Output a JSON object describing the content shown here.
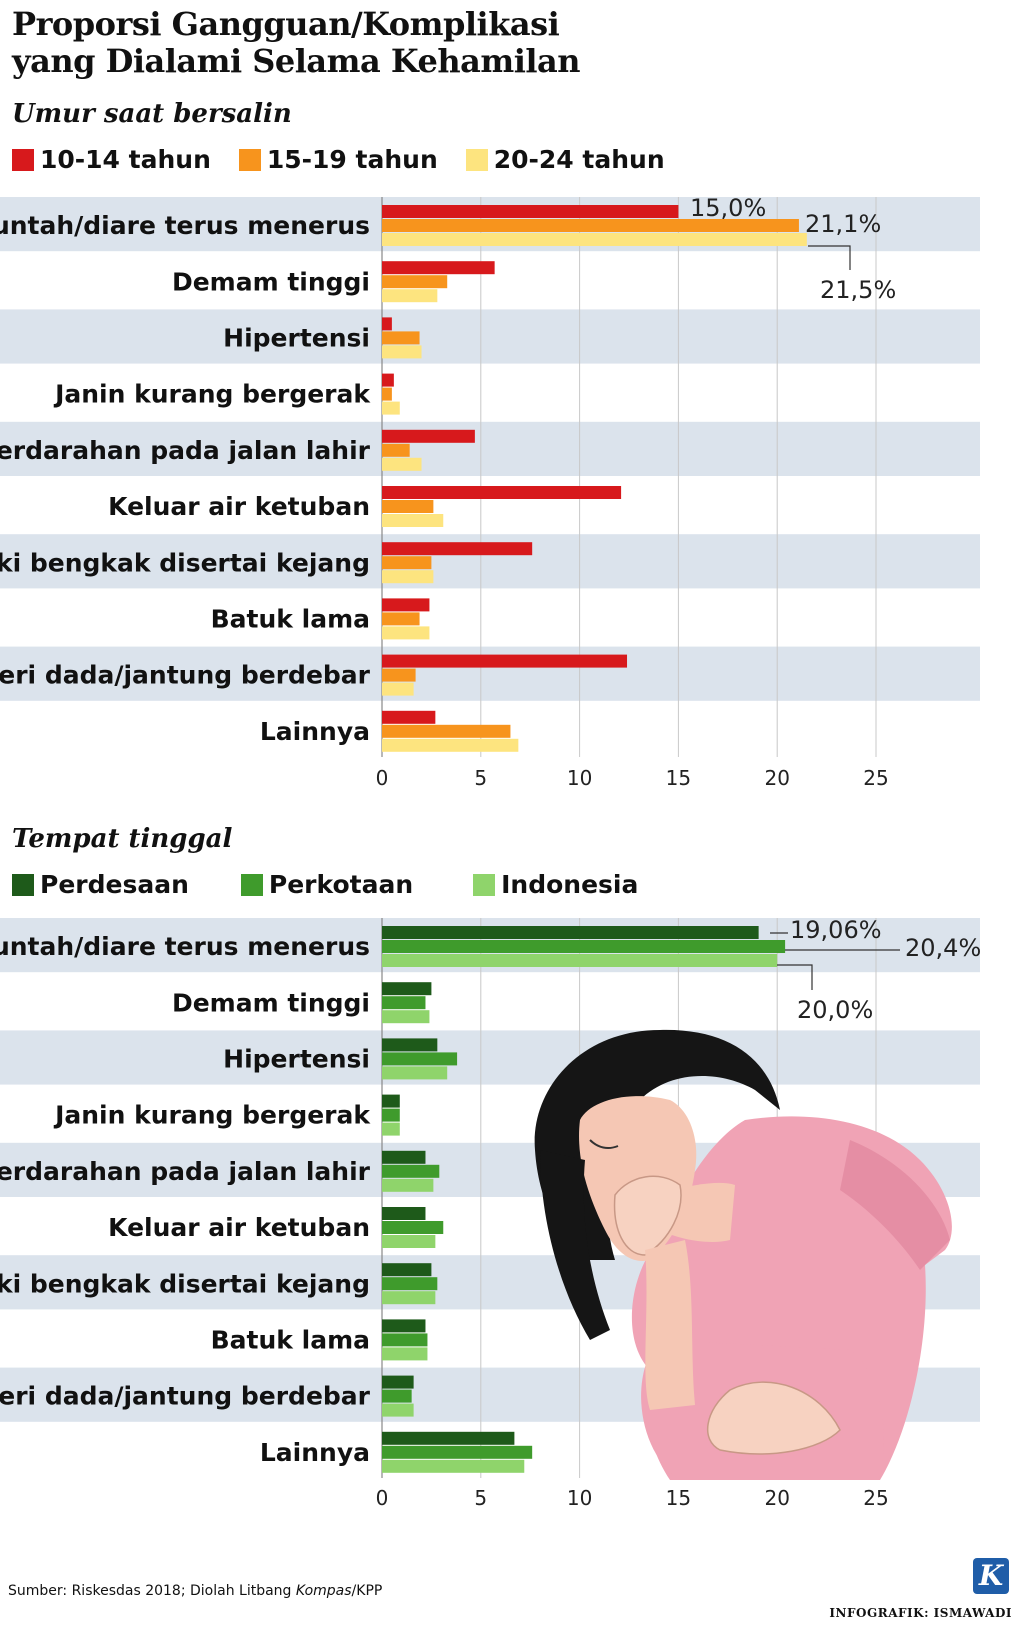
{
  "title_line1": "Proporsi Gangguan/Komplikasi",
  "title_line2": "yang Dialami Selama Kehamilan",
  "source_prefix": "Sumber: Riskesdas 2018; Diolah Litbang ",
  "source_italic": "Kompas",
  "source_suffix": "/KPP",
  "credit": "INFOGRAFIK: ISMAWADI",
  "logo_letter": "K",
  "chart_data": [
    {
      "type": "bar",
      "orientation": "horizontal",
      "subtitle": "Umur saat bersalin",
      "categories": [
        "Muntah/diare terus menerus",
        "Demam tinggi",
        "Hipertensi",
        "Janin kurang bergerak",
        "Perdarahan pada jalan lahir",
        "Keluar air ketuban",
        "Kaki bengkak disertai kejang",
        "Batuk lama",
        "Nyeri dada/jantung berdebar",
        "Lainnya"
      ],
      "series": [
        {
          "name": "10-14 tahun",
          "color": "#d7191c",
          "values": [
            15.0,
            5.7,
            0.5,
            0.6,
            4.7,
            12.1,
            7.6,
            2.4,
            12.4,
            2.7
          ]
        },
        {
          "name": "15-19 tahun",
          "color": "#f7941d",
          "values": [
            21.1,
            3.3,
            1.9,
            0.5,
            1.4,
            2.6,
            2.5,
            1.9,
            1.7,
            6.5
          ]
        },
        {
          "name": "20-24 tahun",
          "color": "#fde47f",
          "values": [
            21.5,
            2.8,
            2.0,
            0.9,
            2.0,
            3.1,
            2.6,
            2.4,
            1.6,
            6.9
          ]
        }
      ],
      "value_labels": [
        "15,0%",
        "21,1%",
        "21,5%"
      ],
      "xlim": [
        0,
        25
      ],
      "xticks": [
        "0",
        "5",
        "10",
        "15",
        "20",
        "25"
      ],
      "grid": true
    },
    {
      "type": "bar",
      "orientation": "horizontal",
      "subtitle": "Tempat tinggal",
      "categories": [
        "Muntah/diare terus menerus",
        "Demam tinggi",
        "Hipertensi",
        "Janin kurang bergerak",
        "Perdarahan pada jalan lahir",
        "Keluar air ketuban",
        "Kaki bengkak disertai kejang",
        "Batuk lama",
        "Nyeri dada/jantung berdebar",
        "Lainnya"
      ],
      "series": [
        {
          "name": "Perdesaan",
          "color": "#1e5a1a",
          "values": [
            19.06,
            2.5,
            2.8,
            0.9,
            2.2,
            2.2,
            2.5,
            2.2,
            1.6,
            6.7
          ]
        },
        {
          "name": "Perkotaan",
          "color": "#3f9b2c",
          "values": [
            20.4,
            2.2,
            3.8,
            0.9,
            2.9,
            3.1,
            2.8,
            2.3,
            1.5,
            7.6
          ]
        },
        {
          "name": "Indonesia",
          "color": "#8fd46b",
          "values": [
            20.0,
            2.4,
            3.3,
            0.9,
            2.6,
            2.7,
            2.7,
            2.3,
            1.6,
            7.2
          ]
        }
      ],
      "value_labels": [
        "19,06%",
        "20,4%",
        "20,0%"
      ],
      "xlim": [
        0,
        25
      ],
      "xticks": [
        "0",
        "5",
        "10",
        "15",
        "20",
        "25"
      ],
      "grid": true
    }
  ]
}
